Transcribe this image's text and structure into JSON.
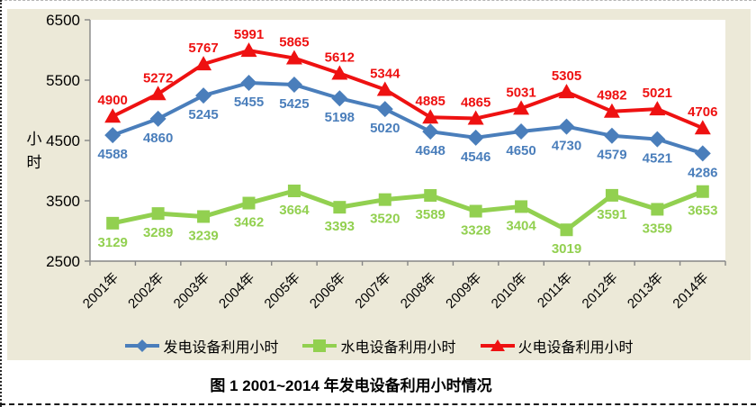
{
  "chart_data": {
    "type": "line",
    "title": "图 1  2001~2014 年发电设备利用小时情况",
    "xlabel": "",
    "ylabel": "小时",
    "ylim": [
      2500,
      6500
    ],
    "yticks": [
      2500,
      3500,
      4500,
      5500,
      6500
    ],
    "grid": false,
    "legend_position": "bottom",
    "plot_bg": "#FFFFFF",
    "chart_bg": "#ECE9D8",
    "axis_color": "#868686",
    "categories": [
      "2001年",
      "2002年",
      "2003年",
      "2004年",
      "2005年",
      "2006年",
      "2007年",
      "2008年",
      "2009年",
      "2010年",
      "2011年",
      "2012年",
      "2013年",
      "2014年"
    ],
    "series": [
      {
        "name": "发电设备利用小时",
        "marker": "diamond",
        "color": "#4A7EBB",
        "line_width": 4,
        "label_position": "below",
        "values": [
          4588,
          4860,
          5245,
          5455,
          5425,
          5198,
          5020,
          4648,
          4546,
          4650,
          4730,
          4579,
          4521,
          4286
        ]
      },
      {
        "name": "水电设备利用小时",
        "marker": "square",
        "color": "#92D050",
        "line_width": 5,
        "label_position": "below",
        "values": [
          3129,
          3289,
          3239,
          3462,
          3664,
          3393,
          3520,
          3589,
          3328,
          3404,
          3019,
          3591,
          3359,
          3653
        ]
      },
      {
        "name": "火电设备利用小时",
        "marker": "triangle",
        "color": "#EE1111",
        "line_width": 4,
        "label_position": "above",
        "values": [
          4900,
          5272,
          5767,
          5991,
          5865,
          5612,
          5344,
          4885,
          4865,
          5031,
          5305,
          4982,
          5021,
          4706
        ]
      }
    ]
  }
}
